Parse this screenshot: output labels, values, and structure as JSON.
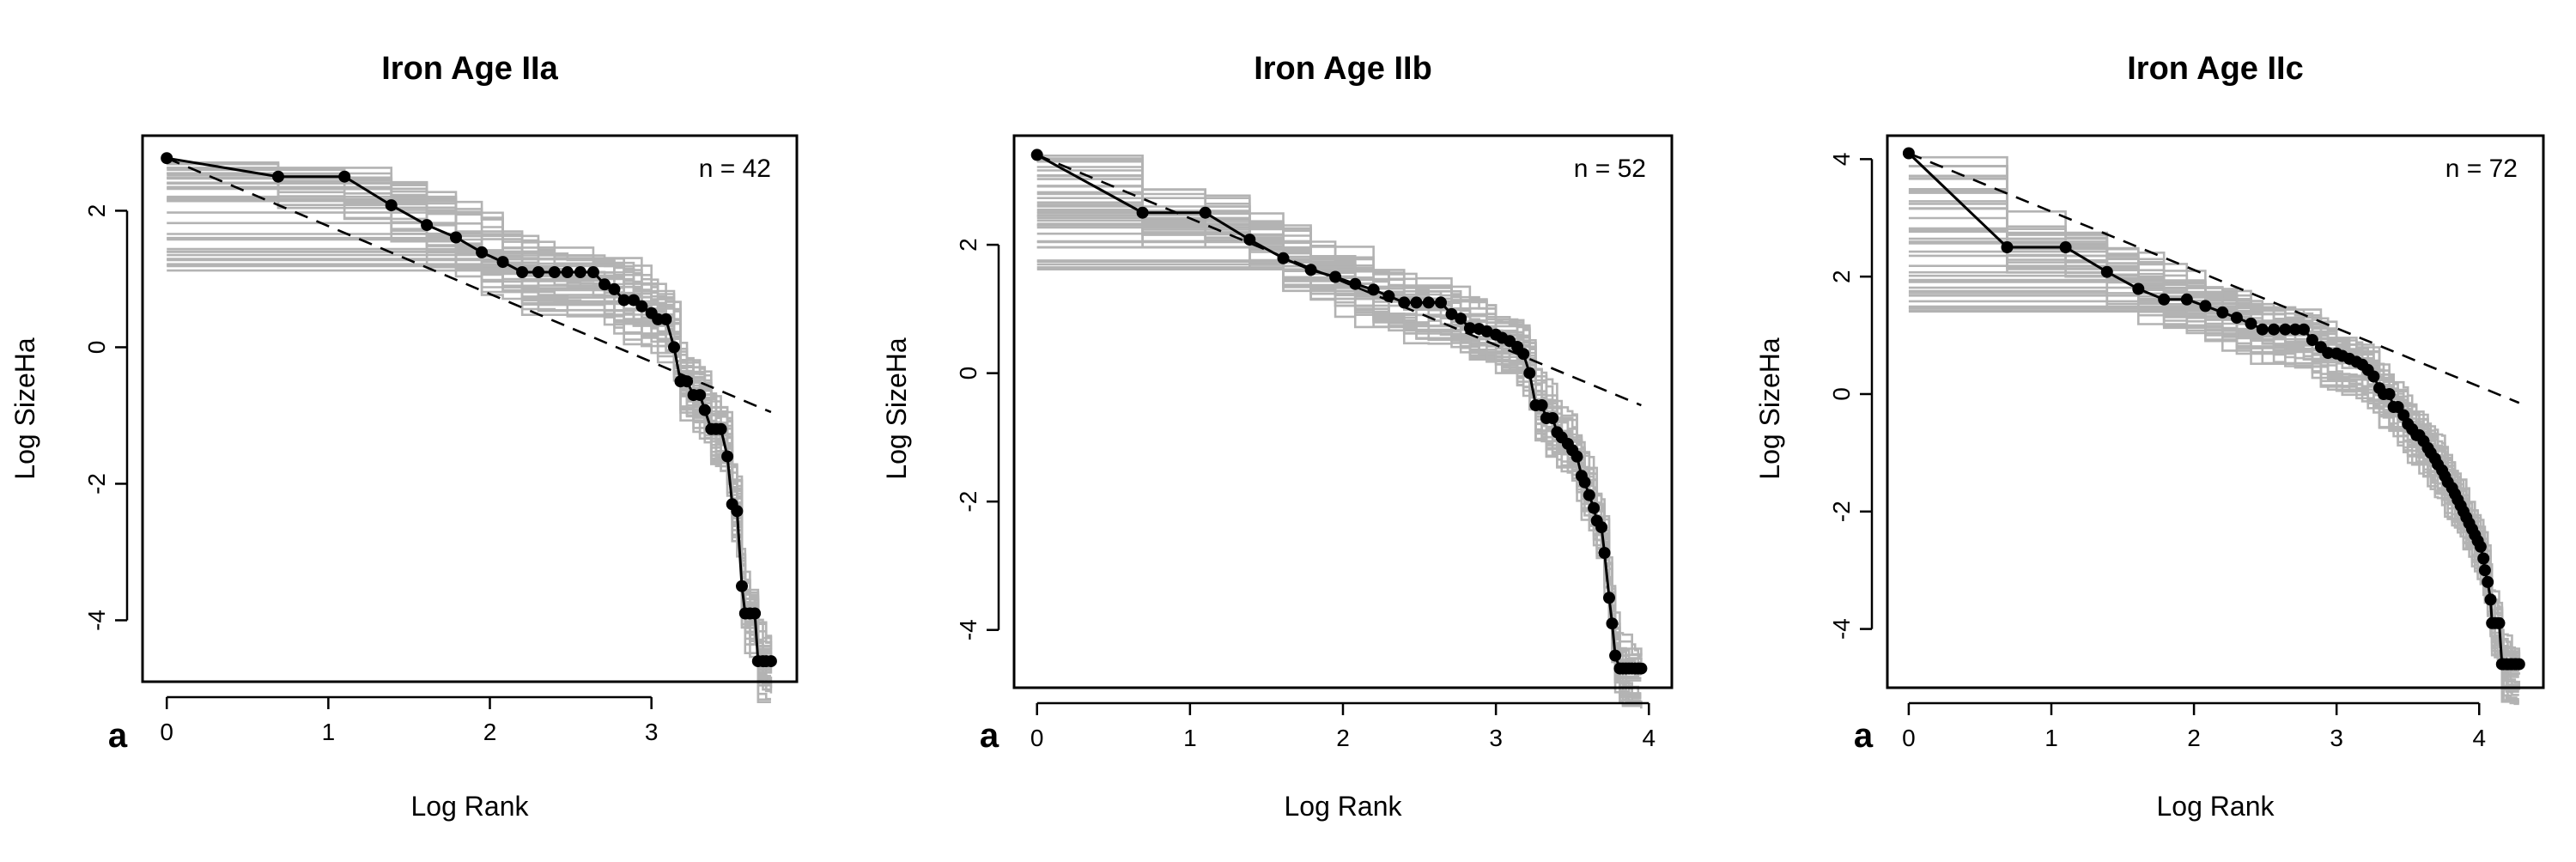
{
  "chart_data": [
    {
      "type": "line",
      "title": "Iron Age IIa",
      "xlabel": "Log Rank",
      "ylabel": "Log SizeHa",
      "panel_letter": "a",
      "annotation": "n = 42",
      "xlim": [
        -0.15,
        3.9
      ],
      "ylim": [
        -4.9,
        3.1
      ],
      "xticks": [
        0,
        1,
        2,
        3
      ],
      "xtick_labels": [
        "0",
        "1",
        "2",
        "3"
      ],
      "yticks": [
        -4,
        -2,
        0,
        2
      ],
      "ytick_labels": [
        "-4",
        "-2",
        "0",
        "2"
      ],
      "grid": false,
      "colors": {
        "observed": "#000000",
        "simulations": "#b3b3b3",
        "fit": "#000000"
      },
      "series": [
        {
          "style": "line-with-points",
          "x": [
            0,
            0.69,
            1.1,
            1.39,
            1.61,
            1.79,
            1.95,
            2.08,
            2.2,
            2.3,
            2.4,
            2.48,
            2.56,
            2.64,
            2.71,
            2.77,
            2.83,
            2.89,
            2.94,
            3.0,
            3.04,
            3.09,
            3.14,
            3.18,
            3.22,
            3.26,
            3.3,
            3.33,
            3.37,
            3.4,
            3.43,
            3.47,
            3.5,
            3.53,
            3.56,
            3.58,
            3.61,
            3.64,
            3.66,
            3.69,
            3.71,
            3.74
          ],
          "y": [
            2.77,
            2.5,
            2.5,
            2.08,
            1.79,
            1.61,
            1.39,
            1.25,
            1.1,
            1.1,
            1.1,
            1.1,
            1.1,
            1.1,
            0.92,
            0.85,
            0.69,
            0.69,
            0.6,
            0.5,
            0.41,
            0.41,
            0.0,
            -0.5,
            -0.5,
            -0.7,
            -0.7,
            -0.92,
            -1.2,
            -1.2,
            -1.2,
            -1.6,
            -2.3,
            -2.4,
            -3.5,
            -3.9,
            -3.9,
            -3.9,
            -4.6,
            -4.6,
            -4.6,
            -4.6
          ]
        },
        {
          "style": "dashed",
          "x": [
            0,
            3.74
          ],
          "y": [
            2.77,
            -0.95
          ]
        }
      ],
      "simulations": {
        "count": 40,
        "value_range": [
          1.1,
          2.77
        ],
        "shape": "step-curves from the maximum descending to about -4.5 at the highest rank"
      }
    },
    {
      "type": "line",
      "title": "Iron Age IIb",
      "xlabel": "Log Rank",
      "ylabel": "Log SizeHa",
      "panel_letter": "a",
      "annotation": "n = 52",
      "xlim": [
        -0.15,
        4.15
      ],
      "ylim": [
        -4.9,
        3.7
      ],
      "xticks": [
        0,
        1,
        2,
        3,
        4
      ],
      "xtick_labels": [
        "0",
        "1",
        "2",
        "3",
        "4"
      ],
      "yticks": [
        -4,
        -2,
        0,
        2
      ],
      "ytick_labels": [
        "-4",
        "-2",
        "0",
        "2"
      ],
      "grid": false,
      "colors": {
        "observed": "#000000",
        "simulations": "#b3b3b3",
        "fit": "#000000"
      },
      "series": [
        {
          "style": "line-with-points",
          "x": [
            0,
            0.69,
            1.1,
            1.39,
            1.61,
            1.79,
            1.95,
            2.08,
            2.2,
            2.3,
            2.4,
            2.48,
            2.56,
            2.64,
            2.71,
            2.77,
            2.83,
            2.89,
            2.94,
            3.0,
            3.04,
            3.09,
            3.14,
            3.18,
            3.22,
            3.26,
            3.3,
            3.33,
            3.37,
            3.4,
            3.43,
            3.47,
            3.5,
            3.53,
            3.56,
            3.58,
            3.61,
            3.64,
            3.66,
            3.69,
            3.71,
            3.74,
            3.76,
            3.78,
            3.81,
            3.83,
            3.85,
            3.87,
            3.89,
            3.91,
            3.93,
            3.95
          ],
          "y": [
            3.4,
            2.5,
            2.5,
            2.08,
            1.79,
            1.61,
            1.5,
            1.39,
            1.3,
            1.2,
            1.1,
            1.1,
            1.1,
            1.1,
            0.92,
            0.85,
            0.7,
            0.69,
            0.65,
            0.6,
            0.55,
            0.5,
            0.41,
            0.3,
            0.0,
            -0.5,
            -0.5,
            -0.7,
            -0.7,
            -0.92,
            -1.0,
            -1.1,
            -1.2,
            -1.3,
            -1.6,
            -1.7,
            -1.9,
            -2.1,
            -2.3,
            -2.4,
            -2.8,
            -3.5,
            -3.9,
            -4.4,
            -4.6,
            -4.6,
            -4.6,
            -4.6,
            -4.6,
            -4.6,
            -4.6,
            -4.6
          ]
        },
        {
          "style": "dashed",
          "x": [
            0,
            3.95
          ],
          "y": [
            3.4,
            -0.5
          ]
        }
      ],
      "simulations": {
        "count": 40,
        "value_range": [
          1.6,
          3.4
        ],
        "shape": "step-curves from the maximum descending to about -4.5 at the highest rank"
      }
    },
    {
      "type": "line",
      "title": "Iron Age IIc",
      "xlabel": "Log Rank",
      "ylabel": "Log SizeHa",
      "panel_letter": "a",
      "annotation": "n = 72",
      "xlim": [
        -0.15,
        4.45
      ],
      "ylim": [
        -5.0,
        4.4
      ],
      "xticks": [
        0,
        1,
        2,
        3,
        4
      ],
      "xtick_labels": [
        "0",
        "1",
        "2",
        "3",
        "4"
      ],
      "yticks": [
        -4,
        -2,
        0,
        2,
        4
      ],
      "ytick_labels": [
        "-4",
        "-2",
        "0",
        "2",
        "4"
      ],
      "grid": false,
      "colors": {
        "observed": "#000000",
        "simulations": "#b3b3b3",
        "fit": "#000000"
      },
      "series": [
        {
          "style": "line-with-points",
          "x": [
            0,
            0.69,
            1.1,
            1.39,
            1.61,
            1.79,
            1.95,
            2.08,
            2.2,
            2.3,
            2.4,
            2.48,
            2.56,
            2.64,
            2.71,
            2.77,
            2.83,
            2.89,
            2.94,
            3.0,
            3.04,
            3.09,
            3.14,
            3.18,
            3.22,
            3.26,
            3.3,
            3.33,
            3.37,
            3.4,
            3.43,
            3.47,
            3.5,
            3.53,
            3.56,
            3.58,
            3.61,
            3.64,
            3.66,
            3.69,
            3.71,
            3.74,
            3.76,
            3.78,
            3.81,
            3.83,
            3.85,
            3.87,
            3.89,
            3.91,
            3.93,
            3.95,
            3.97,
            3.99,
            4.01,
            4.03,
            4.04,
            4.06,
            4.08,
            4.09,
            4.11,
            4.13,
            4.14,
            4.16,
            4.17,
            4.19,
            4.2,
            4.22,
            4.23,
            4.25,
            4.26,
            4.28
          ],
          "y": [
            4.1,
            2.5,
            2.5,
            2.08,
            1.79,
            1.61,
            1.61,
            1.5,
            1.39,
            1.3,
            1.2,
            1.1,
            1.1,
            1.1,
            1.1,
            1.1,
            0.92,
            0.8,
            0.7,
            0.69,
            0.65,
            0.6,
            0.55,
            0.5,
            0.41,
            0.3,
            0.1,
            0.0,
            0.0,
            -0.22,
            -0.22,
            -0.36,
            -0.51,
            -0.6,
            -0.7,
            -0.7,
            -0.8,
            -0.92,
            -1.0,
            -1.1,
            -1.2,
            -1.3,
            -1.4,
            -1.5,
            -1.6,
            -1.7,
            -1.8,
            -1.9,
            -2.0,
            -2.1,
            -2.2,
            -2.3,
            -2.4,
            -2.5,
            -2.6,
            -2.8,
            -3.0,
            -3.2,
            -3.5,
            -3.9,
            -3.9,
            -3.9,
            -3.9,
            -4.6,
            -4.6,
            -4.6,
            -4.6,
            -4.6,
            -4.6,
            -4.6,
            -4.6,
            -4.6
          ]
        },
        {
          "style": "dashed",
          "x": [
            0,
            4.28
          ],
          "y": [
            4.1,
            -0.15
          ]
        }
      ],
      "simulations": {
        "count": 40,
        "value_range": [
          1.39,
          4.1
        ],
        "shape": "step-curves from the maximum descending to about -4.5 at the highest rank"
      }
    }
  ]
}
